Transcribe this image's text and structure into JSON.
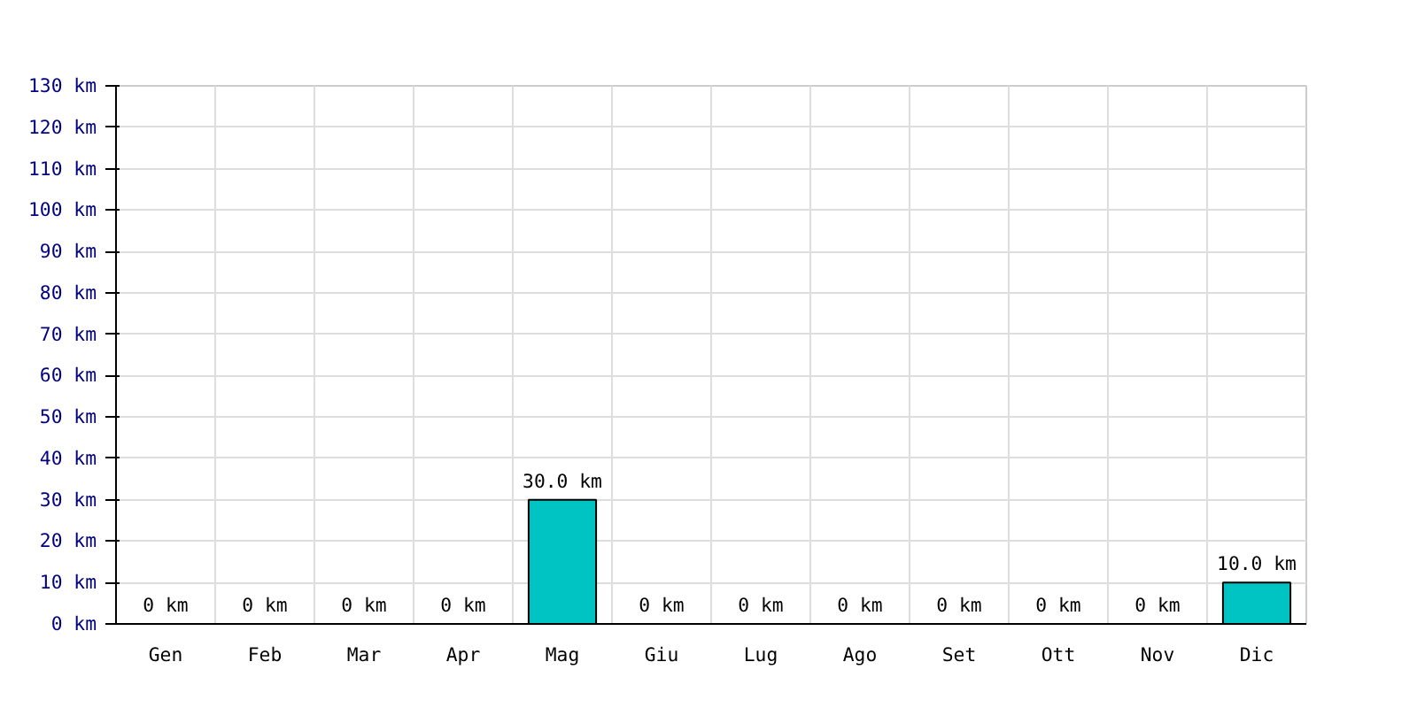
{
  "chart_data": {
    "type": "bar",
    "categories": [
      "Gen",
      "Feb",
      "Mar",
      "Apr",
      "Mag",
      "Giu",
      "Lug",
      "Ago",
      "Set",
      "Ott",
      "Nov",
      "Dic"
    ],
    "values": [
      0,
      0,
      0,
      0,
      30,
      0,
      0,
      0,
      0,
      0,
      0,
      10
    ],
    "value_labels": [
      "0 km",
      "0 km",
      "0 km",
      "0 km",
      "30.0 km",
      "0 km",
      "0 km",
      "0 km",
      "0 km",
      "0 km",
      "0 km",
      "10.0 km"
    ],
    "color": "#00c4c4",
    "ylim": [
      0,
      130
    ],
    "yticks": [
      {
        "value": 0,
        "label": "0 km"
      },
      {
        "value": 10,
        "label": "10 km"
      },
      {
        "value": 20,
        "label": "20 km"
      },
      {
        "value": 30,
        "label": "30 km"
      },
      {
        "value": 40,
        "label": "40 km"
      },
      {
        "value": 50,
        "label": "50 km"
      },
      {
        "value": 60,
        "label": "60 km"
      },
      {
        "value": 70,
        "label": "70 km"
      },
      {
        "value": 80,
        "label": "80 km"
      },
      {
        "value": 90,
        "label": "90 km"
      },
      {
        "value": 100,
        "label": "100 km"
      },
      {
        "value": 110,
        "label": "110 km"
      },
      {
        "value": 120,
        "label": "120 km"
      },
      {
        "value": 130,
        "label": "130 km"
      }
    ],
    "grid": true
  }
}
